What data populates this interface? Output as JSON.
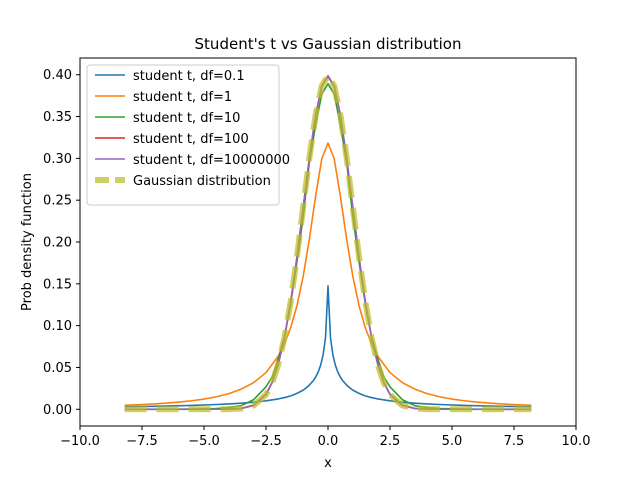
{
  "chart_data": {
    "type": "line",
    "title": "Student's t vs Gaussian distribution",
    "xlabel": "x",
    "ylabel": "Prob density function",
    "xlim": [
      -10,
      10
    ],
    "ylim": [
      -0.02,
      0.42
    ],
    "xticks": [
      -10.0,
      -7.5,
      -5.0,
      -2.5,
      0.0,
      2.5,
      5.0,
      7.5,
      10.0
    ],
    "xtick_labels": [
      "−10.0",
      "−7.5",
      "−5.0",
      "−2.5",
      "0.0",
      "2.5",
      "5.0",
      "7.5",
      "10.0"
    ],
    "yticks": [
      0.0,
      0.05,
      0.1,
      0.15,
      0.2,
      0.25,
      0.3,
      0.35,
      0.4
    ],
    "ytick_labels": [
      "0.00",
      "0.05",
      "0.10",
      "0.15",
      "0.20",
      "0.25",
      "0.30",
      "0.35",
      "0.40"
    ],
    "grid": false,
    "legend_position": "upper-left",
    "series": [
      {
        "name": "student t, df=0.1",
        "color": "#1f77b4",
        "x": [
          -8.2,
          -7.5,
          -7,
          -6.5,
          -6,
          -5.5,
          -5,
          -4.5,
          -4,
          -3.5,
          -3,
          -2.5,
          -2,
          -1.75,
          -1.5,
          -1.25,
          -1,
          -0.8,
          -0.6,
          -0.5,
          -0.4,
          -0.3,
          -0.2,
          -0.1,
          0,
          0.1,
          0.2,
          0.3,
          0.4,
          0.5,
          0.6,
          0.8,
          1,
          1.25,
          1.5,
          1.75,
          2,
          2.5,
          3,
          3.5,
          4,
          4.5,
          5,
          5.5,
          6,
          6.5,
          7,
          7.5,
          8.2
        ],
        "y": [
          0.003,
          0.0033,
          0.0035,
          0.0038,
          0.0042,
          0.0046,
          0.0051,
          0.0057,
          0.0064,
          0.0073,
          0.0085,
          0.0101,
          0.0124,
          0.014,
          0.016,
          0.019,
          0.0229,
          0.0275,
          0.0339,
          0.0384,
          0.0443,
          0.0524,
          0.0645,
          0.0856,
          0.1477,
          0.0856,
          0.0645,
          0.0524,
          0.0443,
          0.0384,
          0.0339,
          0.0275,
          0.0229,
          0.019,
          0.016,
          0.014,
          0.0124,
          0.0101,
          0.0085,
          0.0073,
          0.0064,
          0.0057,
          0.0051,
          0.0046,
          0.0042,
          0.0038,
          0.0035,
          0.0033,
          0.003
        ]
      },
      {
        "name": "student t, df=1",
        "color": "#ff7f0e",
        "x": [
          -8.2,
          -7.5,
          -7,
          -6.5,
          -6,
          -5.5,
          -5,
          -4.5,
          -4,
          -3.5,
          -3,
          -2.5,
          -2,
          -1.75,
          -1.5,
          -1.25,
          -1,
          -0.75,
          -0.5,
          -0.25,
          0,
          0.25,
          0.5,
          0.75,
          1,
          1.25,
          1.5,
          1.75,
          2,
          2.5,
          3,
          3.5,
          4,
          4.5,
          5,
          5.5,
          6,
          6.5,
          7,
          7.5,
          8.2
        ],
        "y": [
          0.0047,
          0.0056,
          0.0064,
          0.0074,
          0.0086,
          0.0102,
          0.0122,
          0.015,
          0.0187,
          0.0241,
          0.0318,
          0.0439,
          0.0637,
          0.0785,
          0.0979,
          0.1241,
          0.1592,
          0.2037,
          0.2546,
          0.2996,
          0.3183,
          0.2996,
          0.2546,
          0.2037,
          0.1592,
          0.1241,
          0.0979,
          0.0785,
          0.0637,
          0.0439,
          0.0318,
          0.0241,
          0.0187,
          0.015,
          0.0122,
          0.0102,
          0.0086,
          0.0074,
          0.0064,
          0.0056,
          0.0047
        ]
      },
      {
        "name": "student t, df=10",
        "color": "#2ca02c",
        "x": [
          -8.2,
          -7,
          -6,
          -5,
          -4.5,
          -4,
          -3.5,
          -3,
          -2.5,
          -2.25,
          -2,
          -1.75,
          -1.5,
          -1.25,
          -1,
          -0.75,
          -0.5,
          -0.25,
          0,
          0.25,
          0.5,
          0.75,
          1,
          1.25,
          1.5,
          1.75,
          2,
          2.25,
          2.5,
          3,
          3.5,
          4,
          4.5,
          5,
          6,
          7,
          8.2
        ],
        "y": [
          2e-05,
          5e-05,
          0.00015,
          0.0005,
          0.0009,
          0.002,
          0.0043,
          0.0114,
          0.0269,
          0.0386,
          0.0611,
          0.087,
          0.1274,
          0.1767,
          0.2304,
          0.2962,
          0.3397,
          0.3769,
          0.3891,
          0.3769,
          0.3397,
          0.2962,
          0.2304,
          0.1767,
          0.1274,
          0.087,
          0.0611,
          0.0386,
          0.0269,
          0.0114,
          0.0043,
          0.002,
          0.0009,
          0.0005,
          0.00015,
          5e-05,
          2e-05
        ]
      },
      {
        "name": "student t, df=100",
        "color": "#d62728",
        "x": [
          -8.2,
          -6,
          -5,
          -4.5,
          -4,
          -3.5,
          -3,
          -2.5,
          -2.25,
          -2,
          -1.75,
          -1.5,
          -1.25,
          -1,
          -0.75,
          -0.5,
          -0.25,
          0,
          0.25,
          0.5,
          0.75,
          1,
          1.25,
          1.5,
          1.75,
          2,
          2.25,
          2.5,
          3,
          3.5,
          4,
          4.5,
          5,
          6,
          8.2
        ],
        "y": [
          0.0,
          1e-05,
          3e-05,
          3e-05,
          0.0002,
          0.001,
          0.0049,
          0.0181,
          0.0323,
          0.0551,
          0.0869,
          0.129,
          0.182,
          0.241,
          0.2999,
          0.3514,
          0.3863,
          0.3979,
          0.3863,
          0.3514,
          0.2999,
          0.241,
          0.182,
          0.129,
          0.0869,
          0.0551,
          0.0323,
          0.0181,
          0.0049,
          0.001,
          0.0002,
          3e-05,
          3e-05,
          1e-05,
          0.0
        ]
      },
      {
        "name": "student t, df=10000000",
        "color": "#9467bd",
        "x": [
          -8.2,
          -6,
          -5,
          -4.5,
          -4,
          -3.5,
          -3,
          -2.5,
          -2.25,
          -2,
          -1.75,
          -1.5,
          -1.25,
          -1,
          -0.75,
          -0.5,
          -0.25,
          0,
          0.25,
          0.5,
          0.75,
          1,
          1.25,
          1.5,
          1.75,
          2,
          2.25,
          2.5,
          3,
          3.5,
          4,
          4.5,
          5,
          6,
          8.2
        ],
        "y": [
          0.0,
          0.0,
          1.5e-06,
          1.6e-05,
          0.00013,
          0.0009,
          0.0044,
          0.0175,
          0.0317,
          0.054,
          0.0863,
          0.1295,
          0.1826,
          0.242,
          0.3011,
          0.3521,
          0.3867,
          0.3989,
          0.3867,
          0.3521,
          0.3011,
          0.242,
          0.1826,
          0.1295,
          0.0863,
          0.054,
          0.0317,
          0.0175,
          0.0044,
          0.0009,
          0.00013,
          1.6e-05,
          1.5e-06,
          0.0,
          0.0
        ]
      },
      {
        "name": "Gaussian distribution",
        "color": "#bcbd22",
        "dashed": true,
        "x": [
          -8.2,
          -6,
          -5,
          -4.5,
          -4,
          -3.5,
          -3,
          -2.5,
          -2.25,
          -2,
          -1.75,
          -1.5,
          -1.25,
          -1,
          -0.75,
          -0.5,
          -0.25,
          0,
          0.25,
          0.5,
          0.75,
          1,
          1.25,
          1.5,
          1.75,
          2,
          2.25,
          2.5,
          3,
          3.5,
          4,
          4.5,
          5,
          6,
          8.2
        ],
        "y": [
          0.0,
          0.0,
          1.5e-06,
          1.6e-05,
          0.00013,
          0.0009,
          0.0044,
          0.0175,
          0.0317,
          0.054,
          0.0863,
          0.1295,
          0.1826,
          0.242,
          0.3011,
          0.3521,
          0.3867,
          0.3989,
          0.3867,
          0.3521,
          0.3011,
          0.242,
          0.1826,
          0.1295,
          0.0863,
          0.054,
          0.0317,
          0.0175,
          0.0044,
          0.0009,
          0.00013,
          1.6e-05,
          1.5e-06,
          0.0,
          0.0
        ]
      }
    ]
  }
}
